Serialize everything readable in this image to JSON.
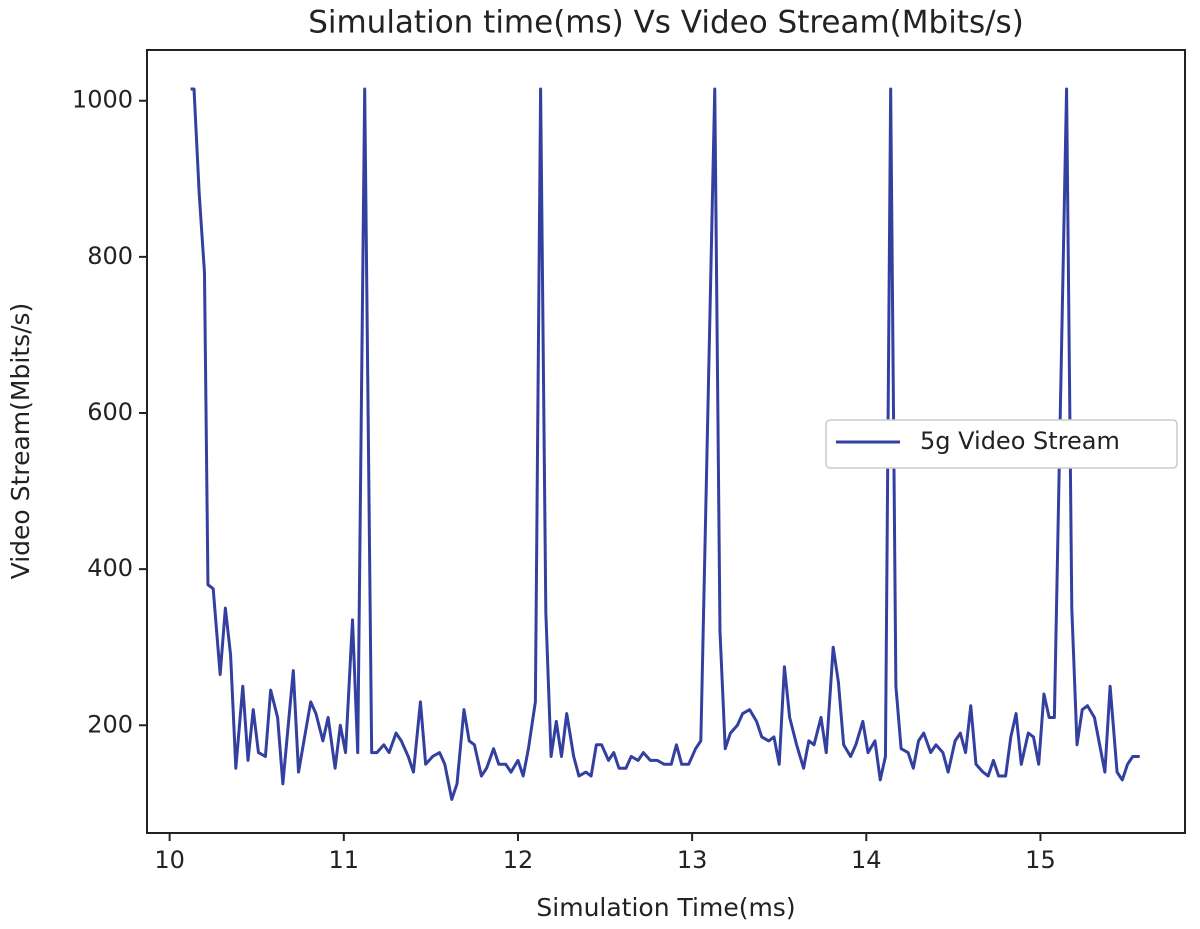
{
  "chart_data": {
    "type": "line",
    "title": "Simulation time(ms) Vs Video Stream(Mbits/s)",
    "x_label": "Simulation Time(ms)",
    "y_label": "Video Stream(Mbits/s)",
    "x": [
      10.12,
      10.14,
      10.17,
      10.2,
      10.22,
      10.25,
      10.29,
      10.32,
      10.35,
      10.38,
      10.42,
      10.45,
      10.48,
      10.51,
      10.55,
      10.58,
      10.62,
      10.65,
      10.71,
      10.74,
      10.81,
      10.84,
      10.88,
      10.91,
      10.95,
      10.98,
      11.01,
      11.05,
      11.08,
      11.12,
      11.16,
      11.19,
      11.23,
      11.26,
      11.3,
      11.33,
      11.37,
      11.4,
      11.44,
      11.47,
      11.51,
      11.55,
      11.58,
      11.62,
      11.65,
      11.69,
      11.72,
      11.75,
      11.79,
      11.82,
      11.86,
      11.89,
      11.93,
      11.96,
      12.0,
      12.03,
      12.06,
      12.1,
      12.13,
      12.16,
      12.19,
      12.22,
      12.25,
      12.28,
      12.32,
      12.35,
      12.39,
      12.42,
      12.45,
      12.48,
      12.52,
      12.55,
      12.58,
      12.62,
      12.65,
      12.69,
      12.72,
      12.76,
      12.8,
      12.84,
      12.88,
      12.91,
      12.94,
      12.98,
      13.02,
      13.05,
      13.13,
      13.16,
      13.19,
      13.22,
      13.26,
      13.29,
      13.33,
      13.37,
      13.4,
      13.44,
      13.47,
      13.5,
      13.53,
      13.56,
      13.6,
      13.64,
      13.67,
      13.7,
      13.74,
      13.77,
      13.81,
      13.84,
      13.87,
      13.91,
      13.94,
      13.98,
      14.01,
      14.05,
      14.08,
      14.11,
      14.14,
      14.17,
      14.2,
      14.24,
      14.27,
      14.3,
      14.33,
      14.37,
      14.4,
      14.44,
      14.47,
      14.51,
      14.54,
      14.57,
      14.6,
      14.63,
      14.67,
      14.7,
      14.73,
      14.76,
      14.8,
      14.83,
      14.86,
      14.89,
      14.93,
      14.96,
      14.99,
      15.02,
      15.05,
      15.08,
      15.15,
      15.18,
      15.21,
      15.24,
      15.27,
      15.31,
      15.34,
      15.37,
      15.4,
      15.44,
      15.47,
      15.5,
      15.53,
      15.57
    ],
    "series": [
      {
        "name": "5g Video Stream",
        "color": "#3340a0",
        "values": [
          1015,
          1015,
          880,
          780,
          380,
          375,
          265,
          350,
          290,
          145,
          250,
          155,
          220,
          165,
          160,
          245,
          210,
          125,
          270,
          140,
          230,
          215,
          180,
          210,
          145,
          200,
          165,
          335,
          165,
          1015,
          165,
          165,
          175,
          165,
          190,
          180,
          160,
          140,
          230,
          150,
          160,
          165,
          150,
          105,
          125,
          220,
          180,
          175,
          135,
          145,
          170,
          150,
          150,
          140,
          155,
          135,
          170,
          230,
          1015,
          345,
          160,
          205,
          160,
          215,
          160,
          135,
          140,
          135,
          175,
          175,
          155,
          165,
          145,
          145,
          160,
          155,
          165,
          155,
          155,
          150,
          150,
          175,
          150,
          150,
          170,
          180,
          1015,
          320,
          170,
          190,
          200,
          215,
          220,
          205,
          185,
          180,
          185,
          150,
          275,
          210,
          175,
          145,
          180,
          175,
          210,
          165,
          300,
          255,
          175,
          160,
          175,
          205,
          165,
          180,
          130,
          160,
          1015,
          250,
          170,
          165,
          145,
          180,
          190,
          165,
          175,
          165,
          140,
          180,
          190,
          165,
          225,
          150,
          140,
          135,
          155,
          135,
          135,
          185,
          215,
          150,
          190,
          185,
          150,
          240,
          210,
          210,
          1015,
          350,
          175,
          220,
          225,
          210,
          175,
          140,
          250,
          140,
          130,
          150,
          160,
          160
        ]
      }
    ],
    "xlim": [
      9.87,
      15.83
    ],
    "ylim": [
      62,
      1065
    ],
    "xticks": [
      10,
      11,
      12,
      13,
      14,
      15
    ],
    "yticks": [
      200,
      400,
      600,
      800,
      1000
    ],
    "legend": "center right"
  }
}
